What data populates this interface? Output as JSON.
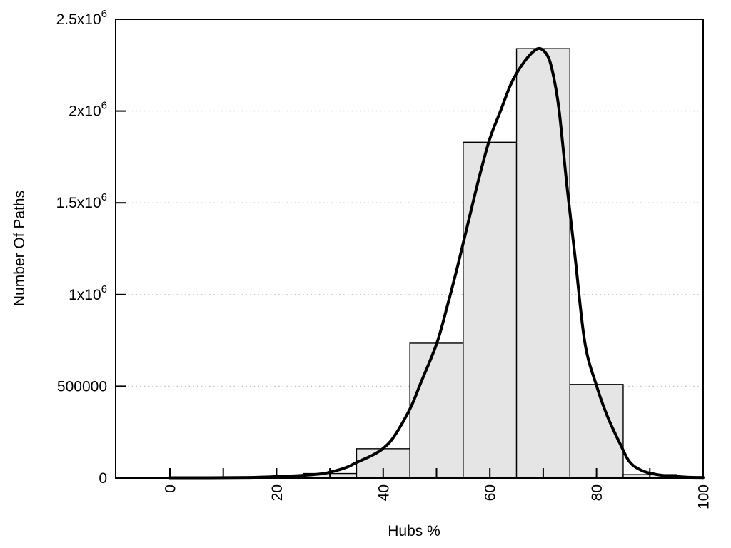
{
  "chart_data": {
    "type": "bar",
    "subtype": "histogram-with-density-curve",
    "title": "",
    "xlabel": "Hubs %",
    "ylabel": "Number Of Paths",
    "xlim": [
      -10.2,
      100
    ],
    "ylim": [
      0,
      2500000
    ],
    "grid": "horizontal-dotted",
    "legend": "none",
    "colors": {
      "background": "#ffffff",
      "bar_fill": "#e5e5e5",
      "bar_border": "#000000",
      "curve": "#000000",
      "gridline": "#bfbfbf",
      "axis": "#000000",
      "text": "#000000"
    },
    "xticks": {
      "all": [
        0,
        10,
        20,
        30,
        40,
        50,
        60,
        70,
        80,
        90,
        100
      ],
      "labeled": [
        {
          "value": 0,
          "label": "0"
        },
        {
          "value": 20,
          "label": "20"
        },
        {
          "value": 40,
          "label": "40"
        },
        {
          "value": 60,
          "label": "60"
        },
        {
          "value": 80,
          "label": "80"
        },
        {
          "value": 100,
          "label": "100"
        }
      ]
    },
    "yticks": [
      {
        "value": 0,
        "label": "0"
      },
      {
        "value": 500000,
        "label": "500000"
      },
      {
        "value": 1000000,
        "label": "1x10",
        "exp": "6"
      },
      {
        "value": 1500000,
        "label": "1.5x10",
        "exp": "6"
      },
      {
        "value": 2000000,
        "label": "2x10",
        "exp": "6"
      },
      {
        "value": 2500000,
        "label": "2.5x10",
        "exp": "6"
      }
    ],
    "bars": {
      "bin_width": 10,
      "bins": [
        {
          "from": 25,
          "to": 35,
          "value": 25000
        },
        {
          "from": 35,
          "to": 45,
          "value": 160000
        },
        {
          "from": 45,
          "to": 55,
          "value": 735000
        },
        {
          "from": 55,
          "to": 65,
          "value": 1830000
        },
        {
          "from": 65,
          "to": 75,
          "value": 2340000
        },
        {
          "from": 75,
          "to": 85,
          "value": 510000
        },
        {
          "from": 85,
          "to": 95,
          "value": 19000
        }
      ]
    },
    "curve": {
      "peak": {
        "x": 69.5,
        "y": 2340000
      },
      "points": [
        [
          0,
          2000
        ],
        [
          5,
          2000
        ],
        [
          10,
          2500
        ],
        [
          15,
          3500
        ],
        [
          20,
          8000
        ],
        [
          25,
          15000
        ],
        [
          28,
          22000
        ],
        [
          30,
          32000
        ],
        [
          33,
          57000
        ],
        [
          35,
          85000
        ],
        [
          38,
          125000
        ],
        [
          40,
          162000
        ],
        [
          42,
          225000
        ],
        [
          45,
          375000
        ],
        [
          47,
          515000
        ],
        [
          50,
          730000
        ],
        [
          52,
          935000
        ],
        [
          54,
          1160000
        ],
        [
          56,
          1400000
        ],
        [
          58,
          1640000
        ],
        [
          60,
          1850000
        ],
        [
          62,
          2000000
        ],
        [
          64,
          2150000
        ],
        [
          66,
          2250000
        ],
        [
          68,
          2320000
        ],
        [
          69.5,
          2340000
        ],
        [
          71,
          2290000
        ],
        [
          72,
          2180000
        ],
        [
          73,
          2000000
        ],
        [
          74.5,
          1580000
        ],
        [
          76,
          1200000
        ],
        [
          77.8,
          740000
        ],
        [
          79.9,
          512000
        ],
        [
          82,
          340000
        ],
        [
          84.6,
          176000
        ],
        [
          86.3,
          85000
        ],
        [
          88.6,
          40000
        ],
        [
          91,
          21000
        ],
        [
          93,
          13000
        ],
        [
          95,
          9000
        ],
        [
          97,
          5000
        ],
        [
          100,
          3000
        ]
      ]
    }
  }
}
